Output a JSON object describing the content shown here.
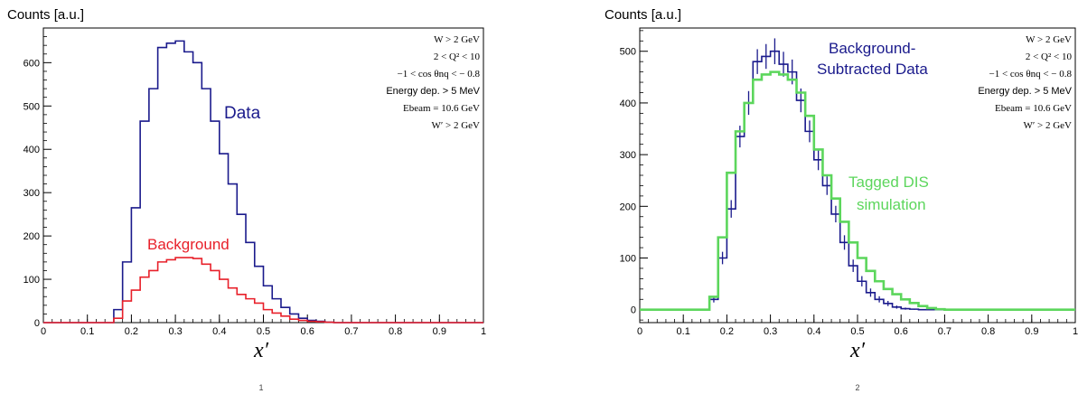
{
  "panels": [
    {
      "y_axis_label": "Counts  [a.u.]",
      "x_axis_label": "x′",
      "panel_number": "1",
      "cuts": [
        "W > 2 GeV",
        "2 < Q² < 10",
        "−1 < cos θnq < − 0.8",
        "Energy dep. > 5 MeV",
        "Ebeam = 10.6 GeV",
        "W′ > 2 GeV"
      ],
      "labels": [
        {
          "text": "Data",
          "color": "#1a1a8c"
        },
        {
          "text": "Background",
          "color": "#e8202a"
        }
      ]
    },
    {
      "y_axis_label": "Counts  [a.u.]",
      "x_axis_label": "x′",
      "panel_number": "2",
      "cuts": [
        "W > 2 GeV",
        "2 < Q² < 10",
        "−1 < cos θnq < − 0.8",
        "Energy dep. > 5 MeV",
        "Ebeam = 10.6 GeV",
        "W′ > 2 GeV"
      ],
      "labels": [
        {
          "text": "Background-",
          "color": "#1a1a8c"
        },
        {
          "text": "Subtracted Data",
          "color": "#1a1a8c"
        },
        {
          "text": "Tagged DIS",
          "color": "#5cd65c"
        },
        {
          "text": "simulation",
          "color": "#5cd65c"
        }
      ]
    }
  ],
  "chart_data": [
    {
      "type": "line",
      "step": true,
      "xlabel": "x′",
      "ylabel": "Counts  [a.u.]",
      "xlim": [
        0,
        1
      ],
      "ylim": [
        0,
        680
      ],
      "x_ticks": [
        0,
        0.1,
        0.2,
        0.3,
        0.4,
        0.5,
        0.6,
        0.7,
        0.8,
        0.9,
        1
      ],
      "x_tick_labels": [
        "0",
        "0.1",
        "0.2",
        "0.3",
        "0.4",
        "0.5",
        "0.6",
        "0.7",
        "0.8",
        "0.9",
        "1"
      ],
      "y_ticks": [
        0,
        100,
        200,
        300,
        400,
        500,
        600
      ],
      "bin_width": 0.02,
      "series": [
        {
          "name": "Data",
          "color": "#1a1a8c",
          "x": [
            0.0,
            0.02,
            0.04,
            0.06,
            0.08,
            0.1,
            0.12,
            0.14,
            0.16,
            0.18,
            0.2,
            0.22,
            0.24,
            0.26,
            0.28,
            0.3,
            0.32,
            0.34,
            0.36,
            0.38,
            0.4,
            0.42,
            0.44,
            0.46,
            0.48,
            0.5,
            0.52,
            0.54,
            0.56,
            0.58,
            0.6,
            0.62,
            0.64,
            0.66,
            0.68,
            0.7,
            0.72,
            0.74,
            0.76,
            0.78,
            0.8,
            0.82,
            0.84,
            0.86,
            0.88,
            0.9,
            0.92,
            0.94,
            0.96,
            0.98
          ],
          "values": [
            0,
            0,
            0,
            0,
            0,
            0,
            0,
            0,
            30,
            140,
            265,
            465,
            540,
            635,
            645,
            650,
            625,
            600,
            540,
            465,
            390,
            320,
            250,
            185,
            130,
            85,
            55,
            35,
            20,
            10,
            5,
            3,
            1,
            0,
            0,
            0,
            0,
            0,
            0,
            0,
            0,
            0,
            0,
            0,
            0,
            0,
            0,
            0,
            0,
            0
          ]
        },
        {
          "name": "Background",
          "color": "#e8202a",
          "x": [
            0.0,
            0.02,
            0.04,
            0.06,
            0.08,
            0.1,
            0.12,
            0.14,
            0.16,
            0.18,
            0.2,
            0.22,
            0.24,
            0.26,
            0.28,
            0.3,
            0.32,
            0.34,
            0.36,
            0.38,
            0.4,
            0.42,
            0.44,
            0.46,
            0.48,
            0.5,
            0.52,
            0.54,
            0.56,
            0.58,
            0.6,
            0.62,
            0.64,
            0.66,
            0.68,
            0.7,
            0.72,
            0.74,
            0.76,
            0.78,
            0.8,
            0.82,
            0.84,
            0.86,
            0.88,
            0.9,
            0.92,
            0.94,
            0.96,
            0.98
          ],
          "values": [
            0,
            0,
            0,
            0,
            0,
            0,
            0,
            0,
            10,
            50,
            75,
            105,
            120,
            140,
            145,
            150,
            150,
            148,
            135,
            120,
            100,
            80,
            65,
            55,
            45,
            30,
            22,
            15,
            8,
            5,
            3,
            2,
            1,
            0,
            0,
            0,
            0,
            0,
            0,
            0,
            0,
            0,
            0,
            0,
            0,
            0,
            0,
            0,
            0,
            0
          ]
        }
      ]
    },
    {
      "type": "line",
      "step": true,
      "xlabel": "x′",
      "ylabel": "Counts  [a.u.]",
      "xlim": [
        0,
        1
      ],
      "ylim": [
        -25,
        545
      ],
      "x_ticks": [
        0,
        0.1,
        0.2,
        0.3,
        0.4,
        0.5,
        0.6,
        0.7,
        0.8,
        0.9,
        1
      ],
      "x_tick_labels": [
        "0",
        "0.1",
        "0.2",
        "0.3",
        "0.4",
        "0.5",
        "0.6",
        "0.7",
        "0.8",
        "0.9",
        "1"
      ],
      "y_ticks": [
        0,
        100,
        200,
        300,
        400,
        500
      ],
      "bin_width": 0.02,
      "series": [
        {
          "name": "Background-Subtracted Data",
          "color": "#1a1a8c",
          "x": [
            0.0,
            0.02,
            0.04,
            0.06,
            0.08,
            0.1,
            0.12,
            0.14,
            0.16,
            0.18,
            0.2,
            0.22,
            0.24,
            0.26,
            0.28,
            0.3,
            0.32,
            0.34,
            0.36,
            0.38,
            0.4,
            0.42,
            0.44,
            0.46,
            0.48,
            0.5,
            0.52,
            0.54,
            0.56,
            0.58,
            0.6,
            0.62,
            0.64,
            0.66,
            0.68,
            0.7,
            0.72,
            0.74,
            0.76,
            0.78,
            0.8,
            0.82,
            0.84,
            0.86,
            0.88,
            0.9,
            0.92,
            0.94,
            0.96,
            0.98
          ],
          "values": [
            0,
            0,
            0,
            0,
            0,
            0,
            0,
            0,
            20,
            100,
            195,
            335,
            400,
            480,
            490,
            500,
            475,
            460,
            405,
            345,
            290,
            240,
            185,
            130,
            85,
            55,
            33,
            20,
            12,
            5,
            2,
            1,
            0,
            0,
            0,
            0,
            0,
            0,
            0,
            0,
            0,
            0,
            0,
            0,
            0,
            0,
            0,
            0,
            0,
            0
          ],
          "errors": [
            0,
            0,
            0,
            0,
            0,
            0,
            0,
            0,
            6,
            12,
            17,
            21,
            23,
            24,
            24,
            25,
            24,
            24,
            23,
            21,
            20,
            18,
            16,
            14,
            12,
            10,
            8,
            6,
            5,
            3,
            2,
            1,
            0,
            0,
            0,
            0,
            0,
            0,
            0,
            0,
            0,
            0,
            0,
            0,
            0,
            0,
            0,
            0,
            0,
            0
          ]
        },
        {
          "name": "Tagged DIS simulation",
          "color": "#5cd65c",
          "x": [
            0.0,
            0.02,
            0.04,
            0.06,
            0.08,
            0.1,
            0.12,
            0.14,
            0.16,
            0.18,
            0.2,
            0.22,
            0.24,
            0.26,
            0.28,
            0.3,
            0.32,
            0.34,
            0.36,
            0.38,
            0.4,
            0.42,
            0.44,
            0.46,
            0.48,
            0.5,
            0.52,
            0.54,
            0.56,
            0.58,
            0.6,
            0.62,
            0.64,
            0.66,
            0.68,
            0.7,
            0.72,
            0.74,
            0.76,
            0.78,
            0.8,
            0.82,
            0.84,
            0.86,
            0.88,
            0.9,
            0.92,
            0.94,
            0.96,
            0.98
          ],
          "values": [
            0,
            0,
            0,
            0,
            0,
            0,
            0,
            0,
            25,
            140,
            265,
            345,
            400,
            445,
            455,
            460,
            455,
            445,
            420,
            375,
            310,
            260,
            215,
            170,
            130,
            100,
            75,
            55,
            40,
            30,
            20,
            13,
            7,
            3,
            1,
            0,
            0,
            0,
            0,
            0,
            0,
            0,
            0,
            0,
            0,
            0,
            0,
            0,
            0,
            0
          ]
        }
      ]
    }
  ]
}
